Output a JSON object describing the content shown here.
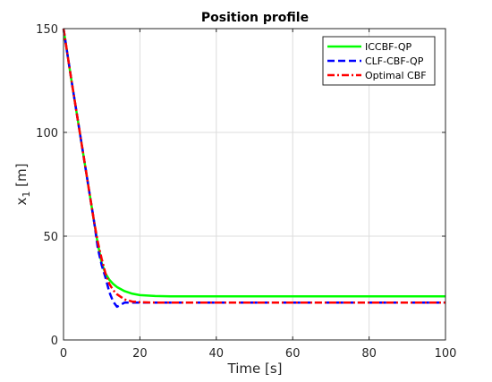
{
  "chart_data": {
    "type": "line",
    "title": "Position profile",
    "xlabel": "Time [s]",
    "ylabel_main": "x",
    "ylabel_sub": "1",
    "ylabel_unit": " [m]",
    "xlim": [
      0,
      100
    ],
    "ylim": [
      0,
      150
    ],
    "xticks": [
      0,
      20,
      40,
      60,
      80,
      100
    ],
    "yticks": [
      0,
      50,
      100,
      150
    ],
    "grid": true,
    "legend_position": "top-right",
    "series": [
      {
        "name": "ICCBF-QP",
        "color": "#00ff00",
        "dash": "solid",
        "x": [
          0,
          2,
          4,
          6,
          8,
          9,
          10,
          11,
          12,
          13,
          14,
          16,
          18,
          20,
          24,
          28,
          100
        ],
        "y": [
          150,
          126,
          103,
          80,
          57,
          46,
          37,
          32,
          29,
          27,
          25.5,
          23.5,
          22.3,
          21.6,
          21.2,
          21,
          21
        ]
      },
      {
        "name": "CLF-CBF-QP",
        "color": "#0000ff",
        "dash": "dashed",
        "x": [
          0,
          2,
          4,
          6,
          8,
          9,
          10,
          11,
          12,
          13,
          14,
          15,
          16,
          18,
          20,
          100
        ],
        "y": [
          150,
          126,
          103,
          80,
          57,
          44,
          36,
          30,
          23,
          18.5,
          16,
          17,
          18,
          18,
          18,
          18
        ]
      },
      {
        "name": "Optimal CBF",
        "color": "#ff0000",
        "dash": "dashdot",
        "x": [
          0,
          2,
          4,
          6,
          8,
          9,
          10,
          11,
          12,
          13,
          14,
          16,
          18,
          20,
          24,
          100
        ],
        "y": [
          150,
          126,
          103,
          80,
          57,
          47,
          39,
          32,
          27,
          24,
          22,
          19.5,
          18.5,
          18.2,
          18,
          18
        ]
      }
    ]
  }
}
